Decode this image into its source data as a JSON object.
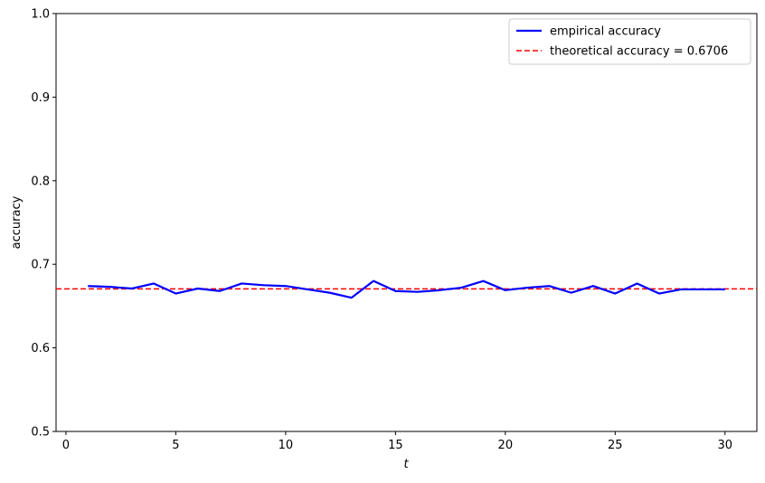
{
  "chart_data": {
    "type": "line",
    "x_label": "t",
    "y_label": "accuracy",
    "x": [
      1,
      2,
      3,
      4,
      5,
      6,
      7,
      8,
      9,
      10,
      11,
      12,
      13,
      14,
      15,
      16,
      17,
      18,
      19,
      20,
      21,
      22,
      23,
      24,
      25,
      26,
      27,
      28,
      29,
      30
    ],
    "series": [
      {
        "name": "empirical accuracy",
        "color": "#0000ff",
        "values": [
          0.674,
          0.673,
          0.671,
          0.677,
          0.665,
          0.671,
          0.668,
          0.677,
          0.675,
          0.674,
          0.67,
          0.666,
          0.66,
          0.68,
          0.668,
          0.667,
          0.669,
          0.672,
          0.68,
          0.669,
          0.672,
          0.674,
          0.666,
          0.674,
          0.665,
          0.677,
          0.665,
          0.67,
          0.67,
          0.67
        ]
      }
    ],
    "reference_line": {
      "name": "theoretical accuracy = 0.6706",
      "value": 0.6706,
      "color": "#ff0000",
      "style": "dashed"
    },
    "xlim": [
      -0.45,
      31.45
    ],
    "xticks": [
      0,
      5,
      10,
      15,
      20,
      25,
      30
    ],
    "ylim": [
      0.5,
      1.0
    ],
    "yticks": [
      0.5,
      0.6,
      0.7,
      0.8,
      0.9,
      {
        "value": 1.0,
        "label": "1.0"
      }
    ],
    "grid": false,
    "legend": "upper right"
  }
}
